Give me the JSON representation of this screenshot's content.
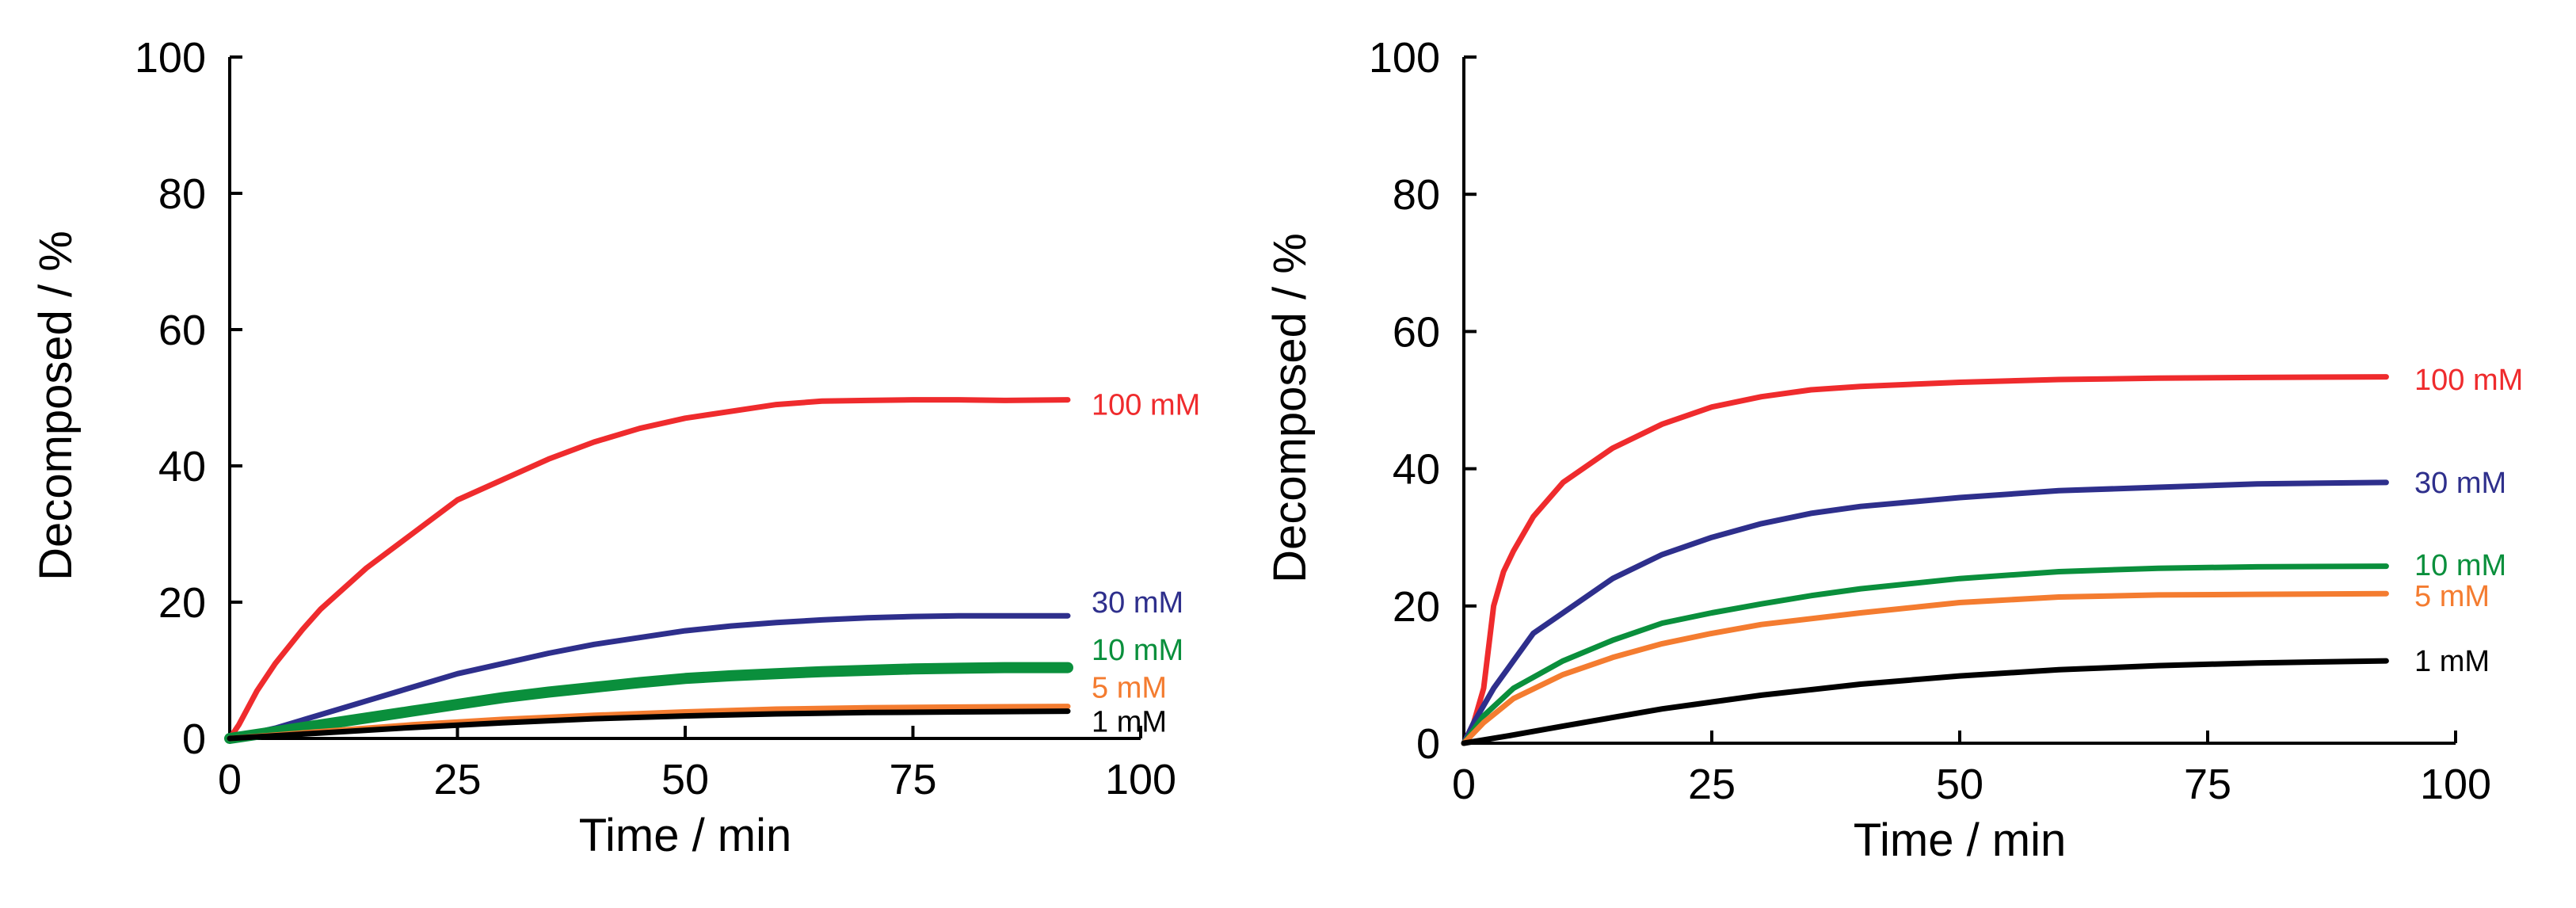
{
  "chart_data": [
    {
      "type": "line",
      "title": "",
      "xlabel": "Time / min",
      "ylabel": "Decomposed / %",
      "xlim": [
        0,
        100
      ],
      "ylim": [
        0,
        100
      ],
      "xticks": [
        "0",
        "25",
        "50",
        "75",
        "100"
      ],
      "yticks": [
        "0",
        "20",
        "40",
        "60",
        "80",
        "100"
      ],
      "grid": false,
      "series": [
        {
          "name": "100 mM",
          "color": "#ef2b2d",
          "label_y": 49,
          "x": [
            0,
            1,
            3,
            5,
            8,
            10,
            15,
            20,
            25,
            30,
            35,
            40,
            45,
            50,
            55,
            60,
            65,
            70,
            75,
            80,
            85,
            92
          ],
          "y": [
            0,
            2,
            7,
            11,
            16,
            19,
            25,
            30,
            35,
            38,
            41,
            43.5,
            45.5,
            47,
            48,
            49,
            49.5,
            49.6,
            49.7,
            49.7,
            49.6,
            49.7
          ]
        },
        {
          "name": "30 mM",
          "color": "#2e2f8c",
          "label_y": 20,
          "x": [
            0,
            5,
            10,
            15,
            20,
            25,
            30,
            35,
            40,
            45,
            50,
            55,
            60,
            65,
            70,
            75,
            80,
            85,
            92
          ],
          "y": [
            0,
            1.5,
            3.5,
            5.5,
            7.5,
            9.5,
            11,
            12.5,
            13.8,
            14.8,
            15.8,
            16.5,
            17,
            17.4,
            17.7,
            17.9,
            18,
            18,
            18
          ]
        },
        {
          "name": "10 mM",
          "color": "#0a8f3c",
          "label_y": 13,
          "x": [
            0,
            5,
            10,
            15,
            20,
            25,
            30,
            35,
            40,
            45,
            50,
            55,
            60,
            65,
            70,
            75,
            80,
            85,
            92
          ],
          "y": [
            0,
            1,
            2,
            3,
            4,
            5,
            6,
            6.8,
            7.5,
            8.2,
            8.8,
            9.2,
            9.5,
            9.8,
            10,
            10.2,
            10.3,
            10.4,
            10.4
          ]
        },
        {
          "name": "5 mM",
          "color": "#f47c30",
          "label_y": 7.5,
          "x": [
            0,
            10,
            20,
            30,
            40,
            50,
            60,
            70,
            80,
            92
          ],
          "y": [
            0,
            1,
            2,
            2.8,
            3.4,
            3.9,
            4.3,
            4.5,
            4.6,
            4.7
          ]
        },
        {
          "name": "1 mM",
          "color": "#000000",
          "label_y": 2.5,
          "x": [
            0,
            10,
            20,
            30,
            40,
            50,
            60,
            70,
            80,
            92
          ],
          "y": [
            0,
            0.8,
            1.6,
            2.3,
            2.9,
            3.3,
            3.6,
            3.8,
            3.9,
            4
          ]
        }
      ]
    },
    {
      "type": "line",
      "title": "",
      "xlabel": "Time / min",
      "ylabel": "Decomposed / %",
      "xlim": [
        0,
        100
      ],
      "ylim": [
        0,
        100
      ],
      "xticks": [
        "0",
        "25",
        "50",
        "75",
        "100"
      ],
      "yticks": [
        "0",
        "20",
        "40",
        "60",
        "80",
        "100"
      ],
      "grid": false,
      "series": [
        {
          "name": "100 mM",
          "color": "#ef2b2d",
          "label_y": 53,
          "x": [
            0,
            1,
            2,
            3,
            4,
            5,
            7,
            10,
            15,
            20,
            25,
            30,
            35,
            40,
            50,
            60,
            70,
            80,
            93
          ],
          "y": [
            0,
            3,
            8,
            20,
            25,
            28,
            33,
            38,
            43,
            46.5,
            49,
            50.5,
            51.5,
            52,
            52.6,
            53,
            53.2,
            53.3,
            53.4
          ]
        },
        {
          "name": "30 mM",
          "color": "#2e2f8c",
          "label_y": 38,
          "x": [
            0,
            1,
            3,
            5,
            7,
            10,
            15,
            20,
            25,
            30,
            35,
            40,
            50,
            60,
            70,
            80,
            93
          ],
          "y": [
            0,
            3,
            8,
            12,
            16,
            19,
            24,
            27.5,
            30,
            32,
            33.5,
            34.5,
            35.8,
            36.8,
            37.3,
            37.8,
            38
          ]
        },
        {
          "name": "10 mM",
          "color": "#0a8f3c",
          "label_y": 26,
          "x": [
            0,
            2,
            5,
            10,
            15,
            20,
            25,
            30,
            35,
            40,
            50,
            60,
            70,
            80,
            93
          ],
          "y": [
            0,
            4,
            8,
            12,
            15,
            17.5,
            19,
            20.3,
            21.5,
            22.5,
            24,
            25,
            25.5,
            25.7,
            25.8
          ]
        },
        {
          "name": "5 mM",
          "color": "#f47c30",
          "label_y": 21.5,
          "x": [
            0,
            2,
            5,
            10,
            15,
            20,
            25,
            30,
            40,
            50,
            60,
            70,
            80,
            93
          ],
          "y": [
            0,
            3,
            6.5,
            10,
            12.5,
            14.5,
            16,
            17.3,
            19,
            20.5,
            21.3,
            21.6,
            21.7,
            21.8
          ]
        },
        {
          "name": "1 mM",
          "color": "#000000",
          "label_y": 12,
          "x": [
            0,
            5,
            10,
            20,
            30,
            40,
            50,
            60,
            70,
            80,
            93
          ],
          "y": [
            0,
            1.2,
            2.5,
            5,
            7,
            8.6,
            9.8,
            10.7,
            11.3,
            11.7,
            12
          ]
        }
      ]
    }
  ]
}
